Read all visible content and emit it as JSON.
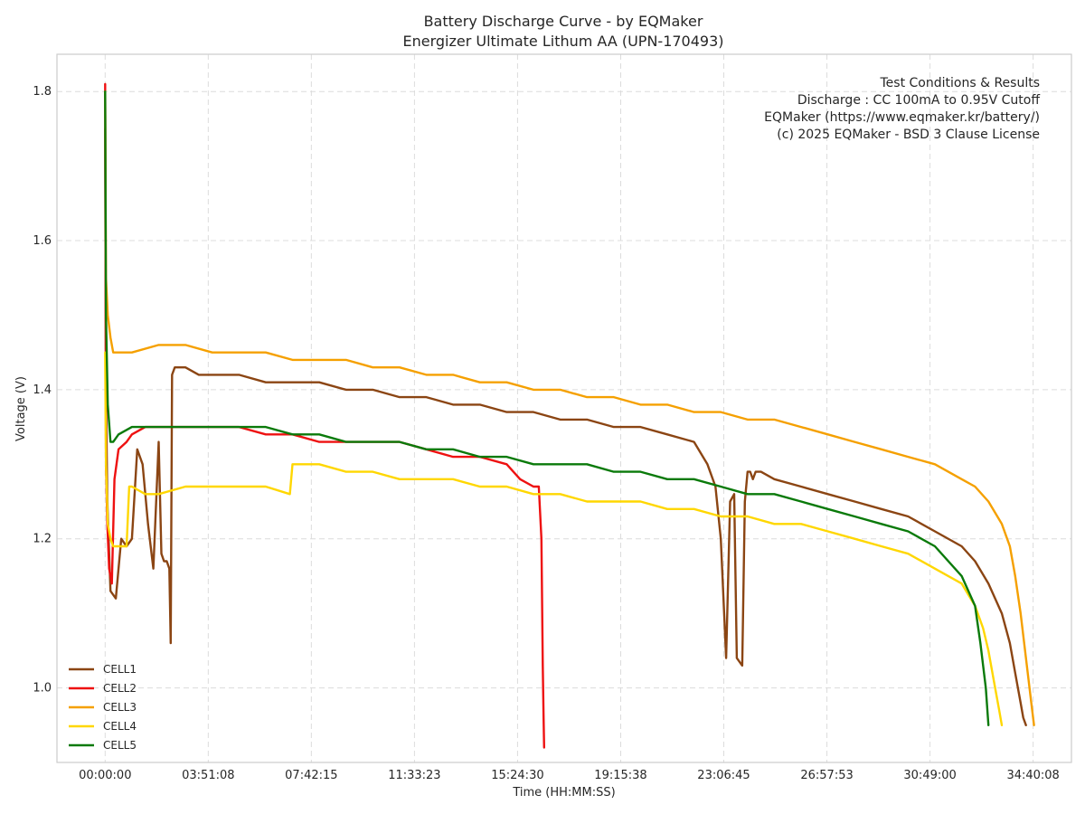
{
  "chart_data": {
    "type": "line",
    "title": "Battery Discharge Curve - by EQMaker",
    "subtitle": "Energizer Ultimate Lithum AA (UPN-170493)",
    "xlabel": "Time (HH:MM:SS)",
    "ylabel": "Voltage (V)",
    "x_unit": "hours",
    "xlim": [
      -1.8,
      36.1
    ],
    "ylim": [
      0.9,
      1.85
    ],
    "x_ticks": [
      {
        "value": 0,
        "label": "00:00:00"
      },
      {
        "value": 3.852,
        "label": "03:51:08"
      },
      {
        "value": 7.704,
        "label": "07:42:15"
      },
      {
        "value": 11.556,
        "label": "11:33:23"
      },
      {
        "value": 15.408,
        "label": "15:24:30"
      },
      {
        "value": 19.261,
        "label": "19:15:38"
      },
      {
        "value": 23.112,
        "label": "23:06:45"
      },
      {
        "value": 26.965,
        "label": "26:57:53"
      },
      {
        "value": 30.817,
        "label": "30:49:00"
      },
      {
        "value": 34.669,
        "label": "34:40:08"
      }
    ],
    "y_ticks": [
      {
        "value": 1.0,
        "label": "1.0"
      },
      {
        "value": 1.2,
        "label": "1.2"
      },
      {
        "value": 1.4,
        "label": "1.4"
      },
      {
        "value": 1.6,
        "label": "1.6"
      },
      {
        "value": 1.8,
        "label": "1.8"
      }
    ],
    "grid": true,
    "legend_position": "bottom-left",
    "annotation_position": "top-right",
    "annotation": [
      "Test Conditions & Results",
      "Discharge : CC 100mA to 0.95V Cutoff",
      "EQMaker (https://www.eqmaker.kr/battery/)",
      "(c) 2025 EQMaker - BSD 3 Clause License"
    ],
    "series": [
      {
        "name": "CELL1",
        "color": "#8B4513",
        "x": [
          0,
          0.03,
          0.08,
          0.2,
          0.4,
          0.6,
          0.8,
          1.0,
          1.2,
          1.4,
          1.6,
          1.8,
          2.0,
          2.1,
          2.2,
          2.3,
          2.4,
          2.45,
          2.5,
          2.6,
          2.8,
          3.0,
          3.5,
          4,
          5,
          6,
          7,
          8,
          9,
          10,
          11,
          12,
          13,
          14,
          15,
          16,
          17,
          18,
          19,
          20,
          21,
          22,
          22.5,
          22.8,
          23.0,
          23.2,
          23.35,
          23.5,
          23.6,
          23.8,
          23.9,
          24.0,
          24.1,
          24.2,
          24.3,
          24.5,
          25,
          26,
          27,
          28,
          29,
          30,
          31,
          32,
          32.5,
          33,
          33.5,
          33.8,
          34.0,
          34.2,
          34.3,
          34.4
        ],
        "y": [
          1.75,
          1.4,
          1.25,
          1.13,
          1.12,
          1.2,
          1.19,
          1.2,
          1.32,
          1.3,
          1.22,
          1.16,
          1.33,
          1.18,
          1.17,
          1.17,
          1.16,
          1.06,
          1.42,
          1.43,
          1.43,
          1.43,
          1.42,
          1.42,
          1.42,
          1.41,
          1.41,
          1.41,
          1.4,
          1.4,
          1.39,
          1.39,
          1.38,
          1.38,
          1.37,
          1.37,
          1.36,
          1.36,
          1.35,
          1.35,
          1.34,
          1.33,
          1.3,
          1.27,
          1.2,
          1.04,
          1.25,
          1.26,
          1.04,
          1.03,
          1.25,
          1.29,
          1.29,
          1.28,
          1.29,
          1.29,
          1.28,
          1.27,
          1.26,
          1.25,
          1.24,
          1.23,
          1.21,
          1.19,
          1.17,
          1.14,
          1.1,
          1.06,
          1.02,
          0.98,
          0.96,
          0.95
        ]
      },
      {
        "name": "CELL2",
        "color": "#EE1111",
        "x": [
          0,
          0.03,
          0.08,
          0.15,
          0.25,
          0.35,
          0.5,
          0.8,
          1.0,
          1.5,
          2,
          3,
          4,
          5,
          6,
          7,
          8,
          9,
          10,
          11,
          12,
          13,
          14,
          15,
          15.5,
          16,
          16.2,
          16.3,
          16.35,
          16.38,
          16.4
        ],
        "y": [
          1.81,
          1.3,
          1.22,
          1.16,
          1.14,
          1.28,
          1.32,
          1.33,
          1.34,
          1.35,
          1.35,
          1.35,
          1.35,
          1.35,
          1.34,
          1.34,
          1.33,
          1.33,
          1.33,
          1.33,
          1.32,
          1.31,
          1.31,
          1.3,
          1.28,
          1.27,
          1.27,
          1.2,
          1.03,
          0.96,
          0.92
        ]
      },
      {
        "name": "CELL3",
        "color": "#F5A000",
        "x": [
          0,
          0.03,
          0.1,
          0.2,
          0.3,
          0.5,
          1,
          2,
          3,
          4,
          5,
          6,
          7,
          8,
          9,
          10,
          11,
          12,
          13,
          14,
          15,
          16,
          17,
          18,
          19,
          20,
          21,
          22,
          23,
          24,
          25,
          26,
          27,
          28,
          29,
          30,
          31,
          32,
          32.5,
          33,
          33.5,
          33.8,
          34.0,
          34.2,
          34.4,
          34.6,
          34.7
        ],
        "y": [
          1.8,
          1.55,
          1.5,
          1.47,
          1.45,
          1.45,
          1.45,
          1.46,
          1.46,
          1.45,
          1.45,
          1.45,
          1.44,
          1.44,
          1.44,
          1.43,
          1.43,
          1.42,
          1.42,
          1.41,
          1.41,
          1.4,
          1.4,
          1.39,
          1.39,
          1.38,
          1.38,
          1.37,
          1.37,
          1.36,
          1.36,
          1.35,
          1.34,
          1.33,
          1.32,
          1.31,
          1.3,
          1.28,
          1.27,
          1.25,
          1.22,
          1.19,
          1.15,
          1.1,
          1.04,
          0.98,
          0.95
        ]
      },
      {
        "name": "CELL4",
        "color": "#FFD700",
        "x": [
          0,
          0.03,
          0.1,
          0.2,
          0.3,
          0.5,
          0.8,
          0.9,
          1.0,
          1.5,
          2,
          3,
          4,
          5,
          6,
          6.9,
          7.0,
          8,
          9,
          10,
          11,
          12,
          13,
          14,
          15,
          16,
          17,
          18,
          19,
          20,
          21,
          22,
          23,
          24,
          25,
          26,
          27,
          28,
          29,
          30,
          31,
          32,
          32.5,
          32.8,
          33.0,
          33.2,
          33.4,
          33.5
        ],
        "y": [
          1.45,
          1.3,
          1.22,
          1.2,
          1.19,
          1.19,
          1.19,
          1.27,
          1.27,
          1.26,
          1.26,
          1.27,
          1.27,
          1.27,
          1.27,
          1.26,
          1.3,
          1.3,
          1.29,
          1.29,
          1.28,
          1.28,
          1.28,
          1.27,
          1.27,
          1.26,
          1.26,
          1.25,
          1.25,
          1.25,
          1.24,
          1.24,
          1.23,
          1.23,
          1.22,
          1.22,
          1.21,
          1.2,
          1.19,
          1.18,
          1.16,
          1.14,
          1.11,
          1.08,
          1.05,
          1.01,
          0.97,
          0.95
        ]
      },
      {
        "name": "CELL5",
        "color": "#0A7A0A",
        "x": [
          0,
          0.03,
          0.1,
          0.2,
          0.3,
          0.5,
          1,
          2,
          3,
          4,
          5,
          6,
          7,
          8,
          9,
          10,
          11,
          12,
          13,
          14,
          15,
          16,
          17,
          18,
          19,
          20,
          21,
          22,
          23,
          24,
          25,
          26,
          27,
          28,
          29,
          30,
          31,
          32,
          32.5,
          32.7,
          32.9,
          33.0
        ],
        "y": [
          1.8,
          1.5,
          1.38,
          1.33,
          1.33,
          1.34,
          1.35,
          1.35,
          1.35,
          1.35,
          1.35,
          1.35,
          1.34,
          1.34,
          1.33,
          1.33,
          1.33,
          1.32,
          1.32,
          1.31,
          1.31,
          1.3,
          1.3,
          1.3,
          1.29,
          1.29,
          1.28,
          1.28,
          1.27,
          1.26,
          1.26,
          1.25,
          1.24,
          1.23,
          1.22,
          1.21,
          1.19,
          1.15,
          1.11,
          1.06,
          1.0,
          0.95
        ]
      }
    ]
  }
}
